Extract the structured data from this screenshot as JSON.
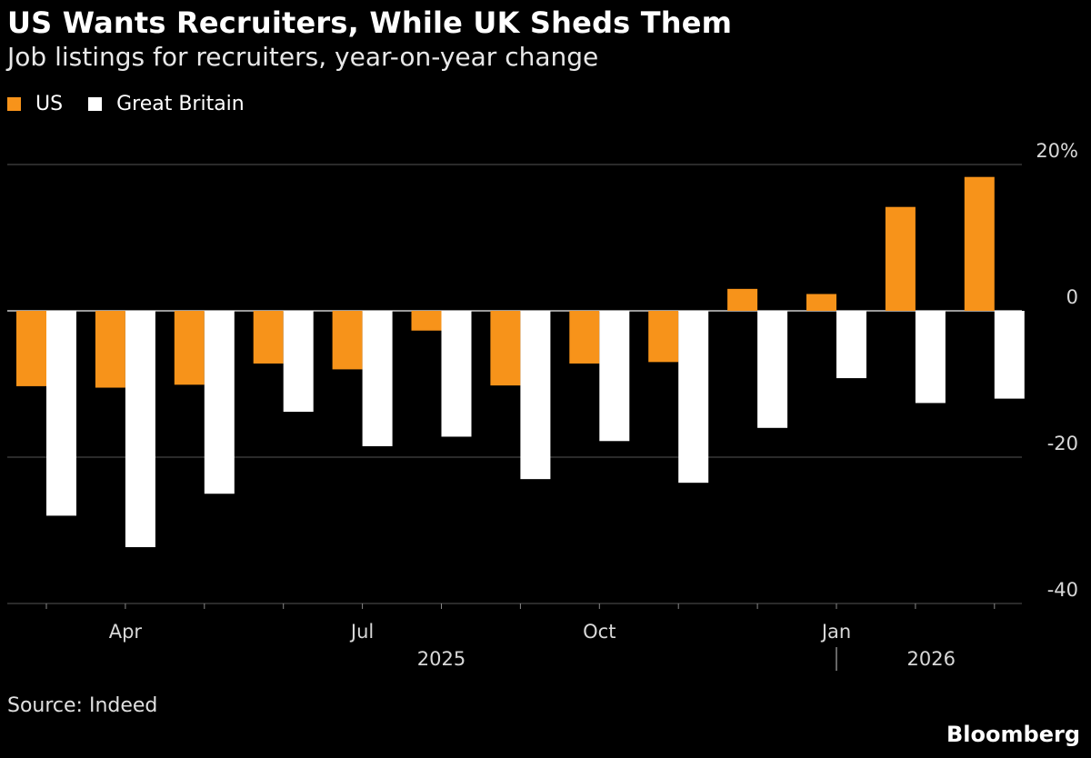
{
  "title": "US Wants Recruiters, While UK Sheds Them",
  "subtitle": "Job listings for recruiters, year-on-year change",
  "source": "Source: Indeed",
  "brand": "Bloomberg",
  "colors": {
    "us": "#f7931a",
    "gb": "#ffffff",
    "grid": "#555555",
    "tick_text": "#d8d8d8"
  },
  "chart_data": {
    "type": "bar",
    "categories": [
      "Mar 2025",
      "Apr 2025",
      "May 2025",
      "Jun 2025",
      "Jul 2025",
      "Aug 2025",
      "Sep 2025",
      "Oct 2025",
      "Nov 2025",
      "Dec 2025",
      "Jan 2026",
      "Feb 2026",
      "Mar 2026"
    ],
    "series": [
      {
        "name": "US",
        "color": "#f7931a",
        "values": [
          -10.3,
          -10.5,
          -10.1,
          -7.2,
          -8.0,
          -2.7,
          -10.2,
          -7.2,
          -7.0,
          3.0,
          2.3,
          14.2,
          18.3
        ]
      },
      {
        "name": "Great Britain",
        "color": "#ffffff",
        "values": [
          -28.0,
          -32.3,
          -25.0,
          -13.8,
          -18.5,
          -17.2,
          -23.0,
          -17.8,
          -23.5,
          -16.0,
          -9.2,
          -12.6,
          -12.0
        ]
      }
    ],
    "ylim": [
      -40,
      20
    ],
    "y_ticks": [
      {
        "value": 20,
        "label": "20%"
      },
      {
        "value": 0,
        "label": "0"
      },
      {
        "value": -20,
        "label": "-20"
      },
      {
        "value": -40,
        "label": "-40"
      }
    ],
    "x_tick_labels": [
      {
        "index": 1,
        "label": "Apr"
      },
      {
        "index": 4,
        "label": "Jul"
      },
      {
        "index": 7,
        "label": "Oct"
      },
      {
        "index": 10,
        "label": "Jan"
      }
    ],
    "year_labels": [
      {
        "label": "2025",
        "center_index": 5
      },
      {
        "label": "2026",
        "center_index": 11.2
      }
    ],
    "year_divider_index": 10,
    "grid": true,
    "legend_position": "top-left"
  }
}
